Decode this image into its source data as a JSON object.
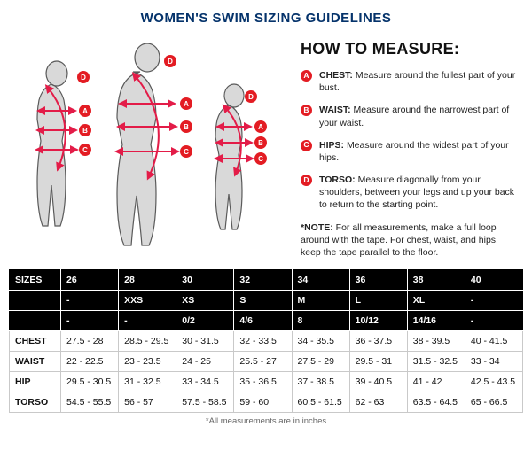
{
  "title": "WOMEN'S SWIM SIZING GUIDELINES",
  "howto_heading": "HOW TO MEASURE:",
  "badges": {
    "a": "A",
    "b": "B",
    "c": "C",
    "d": "D"
  },
  "measures": {
    "a": {
      "label": "CHEST:",
      "text": "Measure around the fullest part of your bust."
    },
    "b": {
      "label": "WAIST:",
      "text": "Measure around the narrowest part of your waist."
    },
    "c": {
      "label": "HIPS:",
      "text": "Measure around the widest part of your hips."
    },
    "d": {
      "label": "TORSO:",
      "text": "Measure diagonally from your shoulders, between your legs and up your back to return to the starting point."
    }
  },
  "note": {
    "label": "*NOTE:",
    "text": "For all measurements, make a full loop around with the tape. For chest, waist, and hips, keep the tape parallel to the floor."
  },
  "colors": {
    "accent_red": "#e31c23",
    "title_blue": "#05336b",
    "figure_outline": "#5a5a5a",
    "figure_fill": "#d9d9d9",
    "arrow": "#e31c48"
  },
  "table": {
    "header_rows": [
      [
        "SIZES",
        "26",
        "28",
        "30",
        "32",
        "34",
        "36",
        "38",
        "40"
      ],
      [
        "",
        "-",
        "XXS",
        "XS",
        "S",
        "M",
        "L",
        "XL",
        "-"
      ],
      [
        "",
        "-",
        "-",
        "0/2",
        "4/6",
        "8",
        "10/12",
        "14/16",
        "-"
      ]
    ],
    "body_rows": [
      [
        "CHEST",
        "27.5 - 28",
        "28.5 - 29.5",
        "30 - 31.5",
        "32 - 33.5",
        "34 - 35.5",
        "36 - 37.5",
        "38 - 39.5",
        "40 - 41.5"
      ],
      [
        "WAIST",
        "22 - 22.5",
        "23 - 23.5",
        "24 - 25",
        "25.5 - 27",
        "27.5 - 29",
        "29.5 - 31",
        "31.5 - 32.5",
        "33 - 34"
      ],
      [
        "HIP",
        "29.5 - 30.5",
        "31 - 32.5",
        "33 - 34.5",
        "35 - 36.5",
        "37 - 38.5",
        "39 - 40.5",
        "41 - 42",
        "42.5 - 43.5"
      ],
      [
        "TORSO",
        "54.5 - 55.5",
        "56 - 57",
        "57.5 - 58.5",
        "59 - 60",
        "60.5 - 61.5",
        "62 - 63",
        "63.5 - 64.5",
        "65 - 66.5"
      ]
    ]
  },
  "footnote": "*All measurements are in inches"
}
